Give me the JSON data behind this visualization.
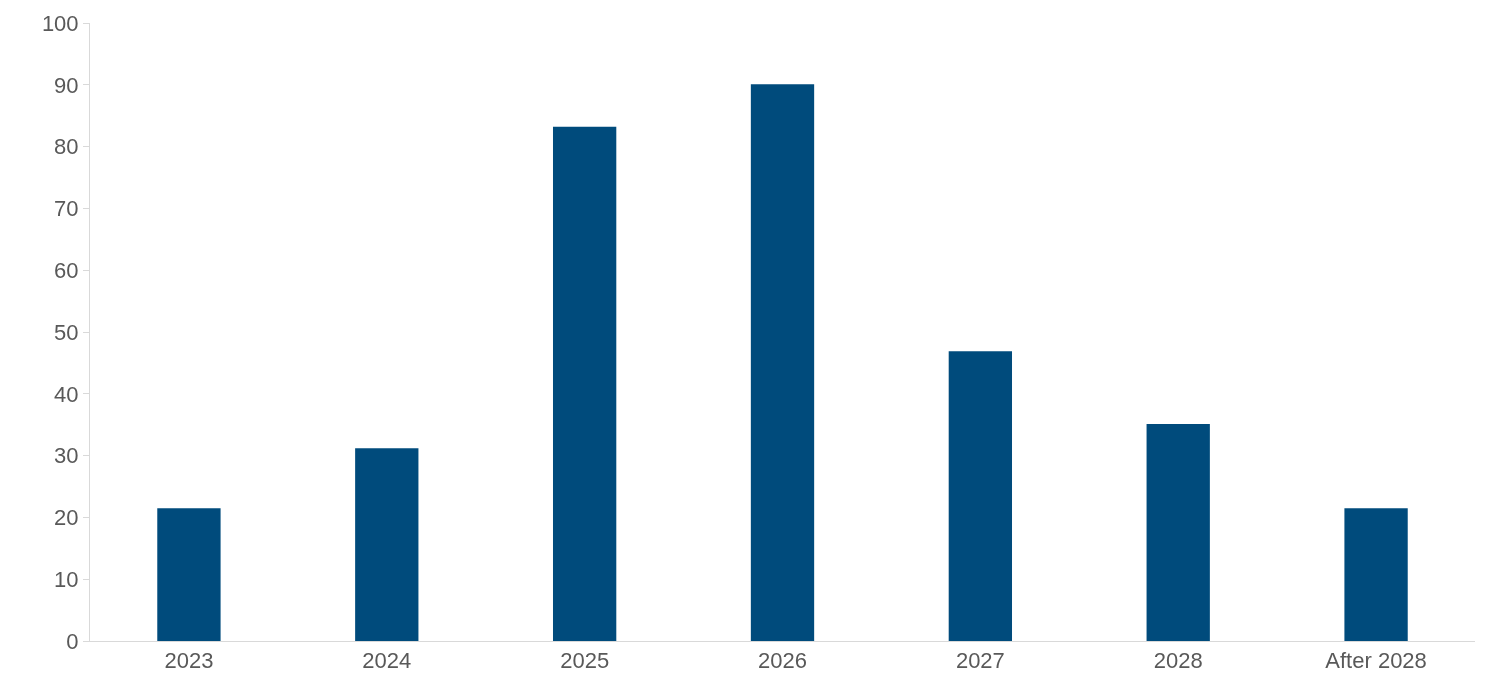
{
  "chart_data": {
    "type": "bar",
    "categories": [
      "2023",
      "2024",
      "2025",
      "2026",
      "2027",
      "2028",
      "After 2028"
    ],
    "values": [
      21.5,
      31.2,
      83.2,
      90.1,
      46.9,
      35.1,
      21.5
    ],
    "color": "#004b7c",
    "ylim": [
      0,
      100
    ],
    "yticks": [
      0,
      10,
      20,
      30,
      40,
      50,
      60,
      70,
      80,
      90,
      100
    ],
    "grid": false,
    "legend": false
  }
}
